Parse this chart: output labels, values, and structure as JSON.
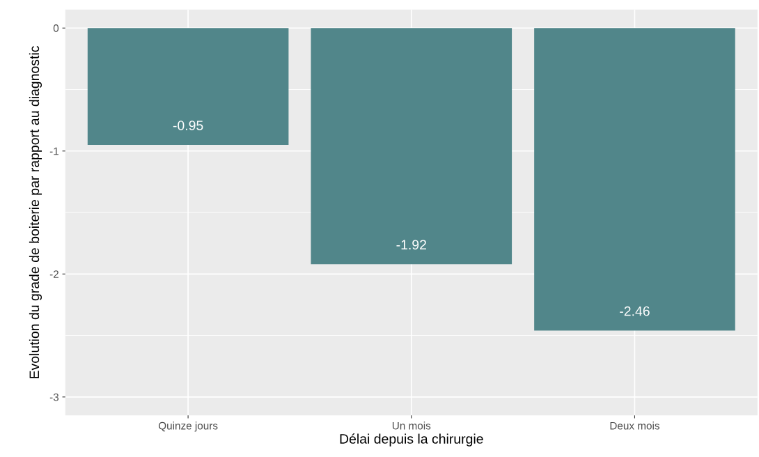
{
  "chart_data": {
    "type": "bar",
    "xlabel": "Délai depuis la chirurgie",
    "ylabel": "Evolution du grade de boiterie par rapport au diagnostic",
    "categories": [
      "Quinze jours",
      "Un mois",
      "Deux mois"
    ],
    "values": [
      -0.95,
      -1.92,
      -2.46
    ],
    "color": "#51868a",
    "ylim": [
      -3.15,
      0.15
    ],
    "yticks": [
      -3,
      -2,
      -1,
      0
    ],
    "grid": true,
    "data_labels": true
  }
}
